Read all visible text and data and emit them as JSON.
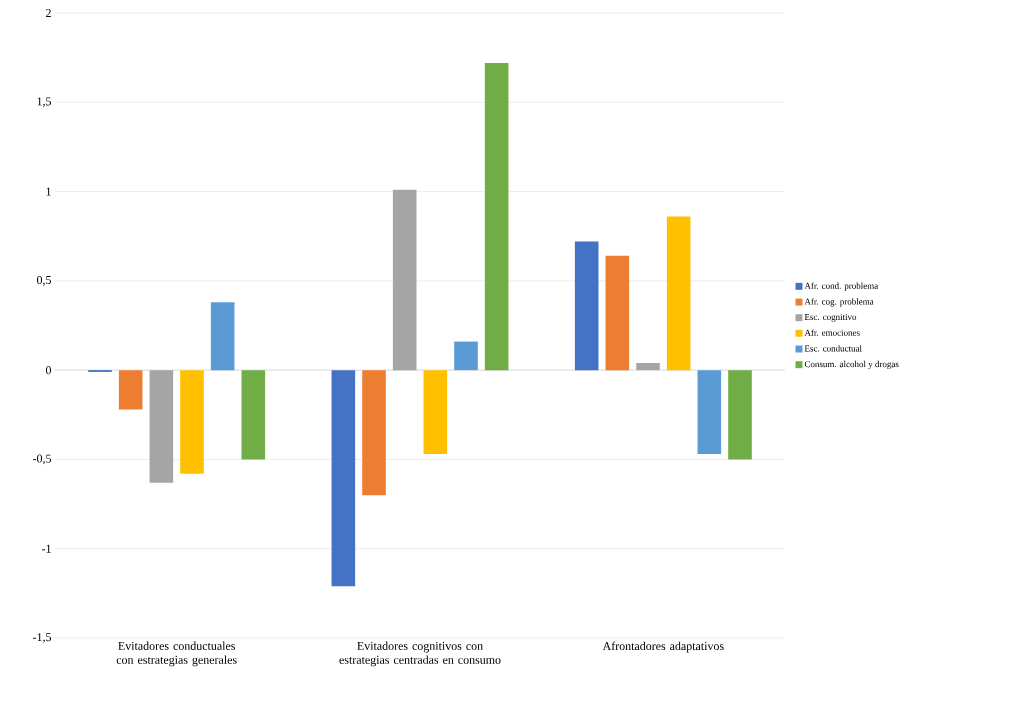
{
  "chart_data": {
    "type": "bar",
    "categories": [
      "Evitadores conductuales con estrategias generales",
      "Evitadores cognitivos con estrategias centradas en consumo",
      "Afrontadores adaptativos"
    ],
    "series": [
      {
        "name": "Afr. cond. problema",
        "color": "#4472c4",
        "values": [
          -0.01,
          -1.21,
          0.72
        ]
      },
      {
        "name": "Afr. cog. problema",
        "color": "#ed7d31",
        "values": [
          -0.22,
          -0.7,
          0.64
        ]
      },
      {
        "name": "Esc. cognitivo",
        "color": "#a5a5a5",
        "values": [
          -0.63,
          1.01,
          0.04
        ]
      },
      {
        "name": "Afr. emociones",
        "color": "#ffc000",
        "values": [
          -0.58,
          -0.47,
          0.86
        ]
      },
      {
        "name": "Esc. conductual",
        "color": "#5b9bd5",
        "values": [
          0.38,
          0.16,
          -0.47
        ]
      },
      {
        "name": "Consum. alcohol y drogas",
        "color": "#70ad47",
        "values": [
          -0.5,
          1.72,
          -0.5
        ]
      }
    ],
    "ylim": [
      -1.5,
      2
    ],
    "yticks": [
      {
        "value": -1.5,
        "label": "-1,5"
      },
      -1,
      {
        "value": -0.5,
        "label": "-0,5"
      },
      0,
      {
        "value": 0.5,
        "label": "0,5"
      },
      1,
      {
        "value": 1.5,
        "label": "1,5"
      },
      2
    ],
    "grid": "y",
    "legend": "right"
  }
}
